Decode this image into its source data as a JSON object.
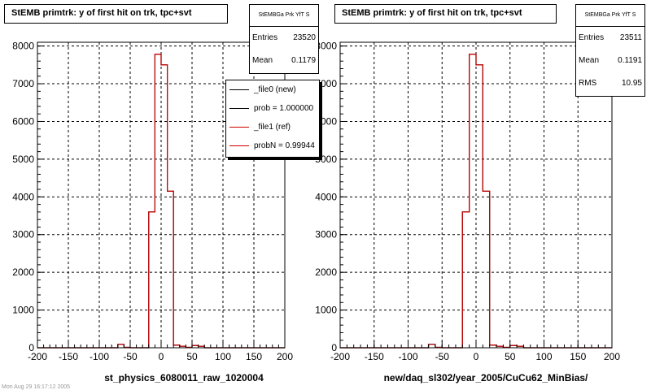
{
  "panels": [
    {
      "title": "StEMB primtrk: y of first hit on trk, tpc+svt",
      "xlabel": "st_physics_6080011_raw_1020004",
      "stats": {
        "name": "StEMBGa Prk YfT S",
        "rows": [
          [
            "Entries",
            "23520"
          ],
          [
            "Mean",
            "0.1179"
          ]
        ]
      },
      "legend": [
        {
          "label": "_file0 (new)",
          "color": "#000000"
        },
        {
          "label": "prob = 1.000000",
          "color": "#000000"
        },
        {
          "label": "_file1 (ref)",
          "color": "#cc0000"
        },
        {
          "label": "probN = 0.99944",
          "color": "#cc0000"
        }
      ]
    },
    {
      "title": "StEMB primtrk: y of first hit on trk, tpc+svt",
      "xlabel": "new/daq_sl302/year_2005/CuCu62_MinBias/",
      "stats": {
        "name": "StEMBGa Prk YfT S",
        "rows": [
          [
            "Entries",
            "23511"
          ],
          [
            "Mean",
            "0.1191"
          ],
          [
            "RMS",
            "10.95"
          ]
        ]
      }
    }
  ],
  "footer": "Mon Aug 29 16:17:12 2005",
  "chart_data": [
    {
      "type": "histogram",
      "title": "StEMB primtrk: y of first hit on trk, tpc+svt",
      "xlabel": "st_physics_6080011_raw_1020004",
      "xlim": [
        -200,
        200
      ],
      "ylim": [
        0,
        8100
      ],
      "xticks": [
        -200,
        -150,
        -100,
        -50,
        0,
        50,
        100,
        150,
        200
      ],
      "yticks": [
        0,
        1000,
        2000,
        3000,
        4000,
        5000,
        6000,
        7000,
        8000
      ],
      "grid": true,
      "bin_edges": [
        -200,
        -190,
        -180,
        -170,
        -160,
        -150,
        -140,
        -130,
        -120,
        -110,
        -100,
        -90,
        -80,
        -70,
        -60,
        -50,
        -40,
        -30,
        -20,
        -10,
        0,
        10,
        20,
        30,
        40,
        50,
        60,
        70,
        80,
        90,
        100,
        110,
        120,
        130,
        140,
        150,
        160,
        170,
        180,
        190,
        200
      ],
      "series": [
        {
          "name": "_file0 (new)",
          "color": "#000000",
          "values": [
            0,
            0,
            0,
            0,
            0,
            0,
            0,
            0,
            0,
            0,
            0,
            0,
            0,
            90,
            10,
            0,
            0,
            0,
            3600,
            7780,
            7500,
            4150,
            70,
            40,
            10,
            60,
            40,
            0,
            0,
            0,
            0,
            0,
            0,
            0,
            0,
            0,
            0,
            0,
            0,
            0
          ]
        },
        {
          "name": "_file1 (ref)",
          "color": "#cc0000",
          "values": [
            0,
            0,
            0,
            0,
            0,
            0,
            0,
            0,
            0,
            0,
            0,
            0,
            0,
            90,
            10,
            0,
            0,
            0,
            3600,
            7780,
            7500,
            4150,
            70,
            40,
            10,
            60,
            40,
            0,
            0,
            0,
            0,
            0,
            0,
            0,
            0,
            0,
            0,
            0,
            0,
            0
          ]
        }
      ]
    },
    {
      "type": "histogram",
      "title": "StEMB primtrk: y of first hit on trk, tpc+svt",
      "xlabel": "new/daq_sl302/year_2005/CuCu62_MinBias/",
      "xlim": [
        -200,
        200
      ],
      "ylim": [
        0,
        8100
      ],
      "xticks": [
        -200,
        -150,
        -100,
        -50,
        0,
        50,
        100,
        150,
        200
      ],
      "yticks": [
        0,
        1000,
        2000,
        3000,
        4000,
        5000,
        6000,
        7000,
        8000
      ],
      "grid": true,
      "bin_edges": [
        -200,
        -190,
        -180,
        -170,
        -160,
        -150,
        -140,
        -130,
        -120,
        -110,
        -100,
        -90,
        -80,
        -70,
        -60,
        -50,
        -40,
        -30,
        -20,
        -10,
        0,
        10,
        20,
        30,
        40,
        50,
        60,
        70,
        80,
        90,
        100,
        110,
        120,
        130,
        140,
        150,
        160,
        170,
        180,
        190,
        200
      ],
      "series": [
        {
          "name": "_file0 (new)",
          "color": "#000000",
          "values": [
            0,
            0,
            0,
            0,
            0,
            0,
            0,
            0,
            0,
            0,
            0,
            0,
            0,
            90,
            10,
            0,
            0,
            0,
            3600,
            7780,
            7500,
            4150,
            70,
            40,
            10,
            60,
            40,
            0,
            0,
            0,
            0,
            0,
            0,
            0,
            0,
            0,
            0,
            0,
            0,
            0
          ]
        },
        {
          "name": "_file1 (ref)",
          "color": "#cc0000",
          "values": [
            0,
            0,
            0,
            0,
            0,
            0,
            0,
            0,
            0,
            0,
            0,
            0,
            0,
            90,
            10,
            0,
            0,
            0,
            3600,
            7780,
            7500,
            4150,
            70,
            40,
            10,
            60,
            40,
            0,
            0,
            0,
            0,
            0,
            0,
            0,
            0,
            0,
            0,
            0,
            0,
            0
          ]
        }
      ]
    }
  ]
}
